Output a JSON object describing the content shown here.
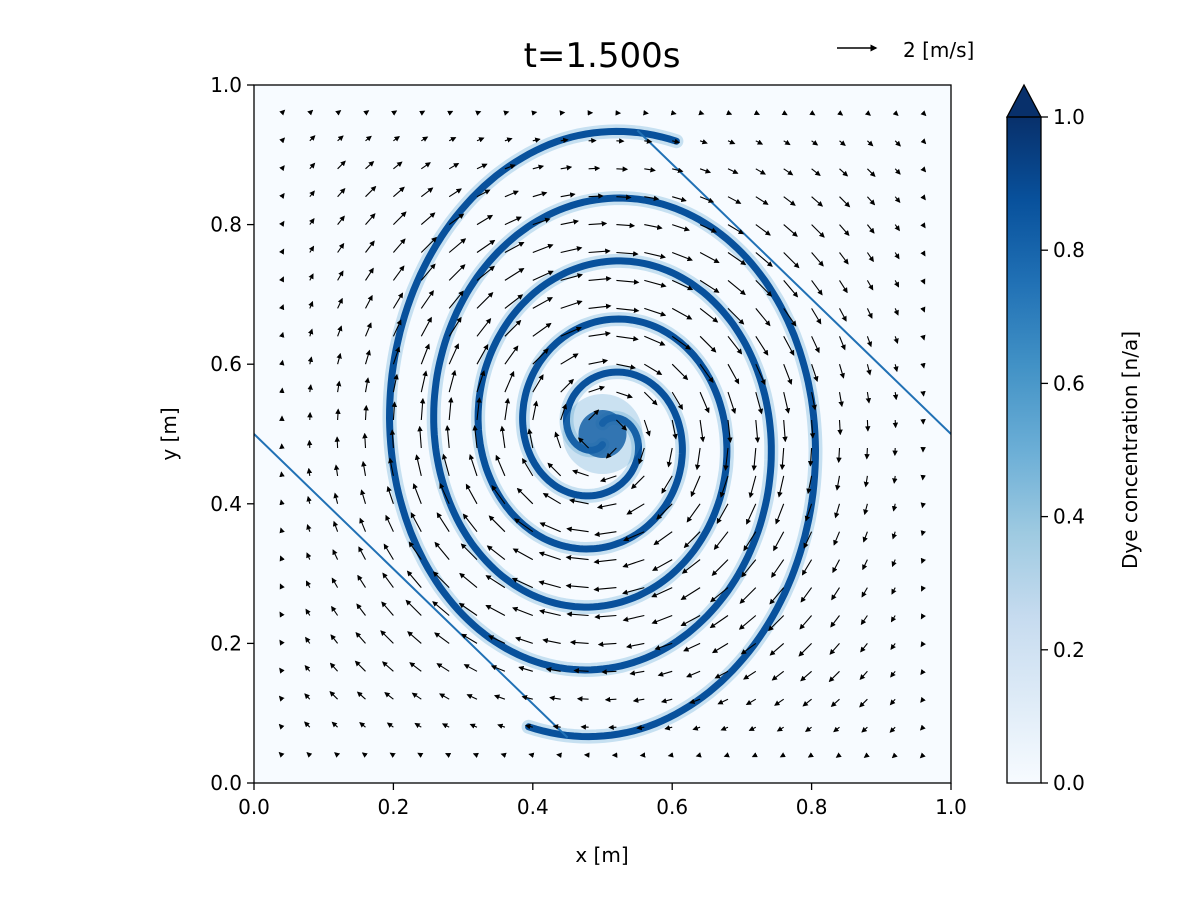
{
  "chart_data": {
    "type": "heatmap",
    "title": "t=1.500s",
    "xlabel": "x [m]",
    "ylabel": "y [m]",
    "xlim": [
      0.0,
      1.0
    ],
    "ylim": [
      0.0,
      1.0
    ],
    "x_ticks": [
      0.0,
      0.2,
      0.4,
      0.6,
      0.8,
      1.0
    ],
    "y_ticks": [
      0.0,
      0.2,
      0.4,
      0.6,
      0.8,
      1.0
    ],
    "x_tick_labels": [
      "0.0",
      "0.2",
      "0.4",
      "0.6",
      "0.8",
      "1.0"
    ],
    "y_tick_labels": [
      "0.0",
      "0.2",
      "0.4",
      "0.6",
      "0.8",
      "1.0"
    ],
    "colorbar": {
      "label": "Dye concentration [n/a]",
      "range": [
        0.0,
        1.0
      ],
      "ticks": [
        0.0,
        0.2,
        0.4,
        0.6,
        0.8,
        1.0
      ],
      "tick_labels": [
        "0.0",
        "0.2",
        "0.4",
        "0.6",
        "0.8",
        "1.0"
      ],
      "extend": "max",
      "colormap": "Blues",
      "colors": [
        "#f7fbff",
        "#deebf7",
        "#c6dbef",
        "#9ecae1",
        "#6baed6",
        "#4292c6",
        "#2171b5",
        "#08519c",
        "#08306b"
      ]
    },
    "quiver_key": {
      "label": "2 [m/s]",
      "magnitude": 2
    },
    "vector_field": {
      "kind": "swirling vortex",
      "grid_spacing": 0.04,
      "center": [
        0.5,
        0.5
      ],
      "direction": "clockwise"
    },
    "dye_spiral": {
      "arms": 2,
      "center": [
        0.5,
        0.5
      ],
      "outer_extent_x": [
        0.16,
        0.84
      ],
      "outer_extent_y": [
        0.065,
        0.935
      ],
      "edge_streak_points": [
        [
          0.0,
          0.5
        ],
        [
          0.45,
          0.065
        ],
        [
          0.55,
          0.935
        ],
        [
          1.0,
          0.5
        ]
      ]
    }
  }
}
